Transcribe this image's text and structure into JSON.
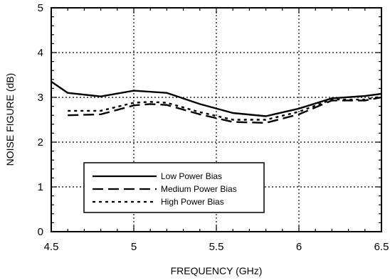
{
  "chart_data": {
    "type": "line",
    "xlabel": "FREQUENCY (GHz)",
    "ylabel": "NOISE FIGURE (dB)",
    "xlim": [
      4.5,
      6.5
    ],
    "ylim": [
      0,
      5
    ],
    "x_ticks": [
      "4.5",
      "5",
      "5.5",
      "6",
      "6.5"
    ],
    "y_ticks": [
      "0",
      "1",
      "2",
      "3",
      "4",
      "5"
    ],
    "grid": "dotted",
    "legend_position": "lower-left",
    "series": [
      {
        "name": "Low Power Bias",
        "style": "solid",
        "x": [
          4.5,
          4.6,
          4.8,
          5.0,
          5.2,
          5.4,
          5.6,
          5.8,
          6.0,
          6.2,
          6.4,
          6.5
        ],
        "y": [
          3.35,
          3.1,
          3.02,
          3.15,
          3.1,
          2.85,
          2.65,
          2.58,
          2.75,
          2.98,
          3.03,
          3.08
        ]
      },
      {
        "name": "Medium Power Bias",
        "style": "dashed",
        "x": [
          4.6,
          4.8,
          5.0,
          5.1,
          5.2,
          5.4,
          5.6,
          5.8,
          6.0,
          6.2,
          6.4,
          6.5
        ],
        "y": [
          2.6,
          2.62,
          2.82,
          2.85,
          2.83,
          2.62,
          2.45,
          2.43,
          2.62,
          2.93,
          2.93,
          3.0
        ]
      },
      {
        "name": "High Power Bias",
        "style": "dotted",
        "x": [
          4.6,
          4.8,
          5.0,
          5.1,
          5.2,
          5.4,
          5.6,
          5.8,
          6.0,
          6.2,
          6.4,
          6.5
        ],
        "y": [
          2.7,
          2.7,
          2.88,
          2.9,
          2.88,
          2.67,
          2.5,
          2.5,
          2.68,
          2.95,
          2.95,
          3.02
        ]
      }
    ]
  }
}
